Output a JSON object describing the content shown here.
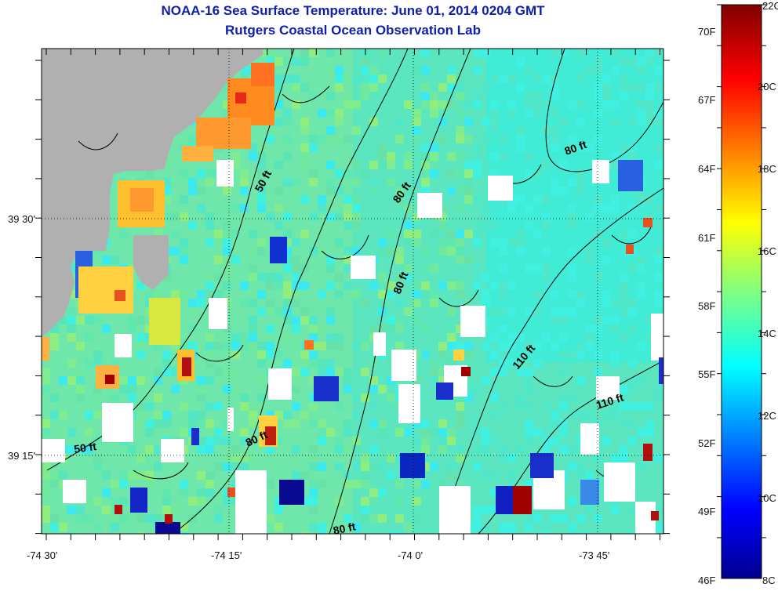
{
  "title": "NOAA-16 Sea Surface Temperature:  June 01, 2014 0204 GMT",
  "subtitle": "Rutgers Coastal Ocean Observation Lab",
  "map": {
    "x_ticks": [
      "-74 30'",
      "-74 15'",
      "-74 0'",
      "-73 45'"
    ],
    "y_ticks": [
      "39 30'",
      "39 15'"
    ],
    "contour_labels": [
      "50 ft",
      "80 ft",
      "80 ft",
      "80 ft",
      "110 ft",
      "110 ft",
      "50 ft",
      "80 ft",
      "80 ft"
    ],
    "colors": {
      "land": "#b0b0b0",
      "ocean_base": "#78e6a0",
      "no_data": "#ffffff"
    }
  },
  "colorbar": {
    "celsius_labels": [
      "22C",
      "20C",
      "18C",
      "16C",
      "14C",
      "12C",
      "10C",
      "8C"
    ],
    "fahrenheit_labels": [
      "70F",
      "67F",
      "64F",
      "61F",
      "58F",
      "55F",
      "52F",
      "49F",
      "46F"
    ],
    "range_c": [
      8,
      22
    ]
  }
}
